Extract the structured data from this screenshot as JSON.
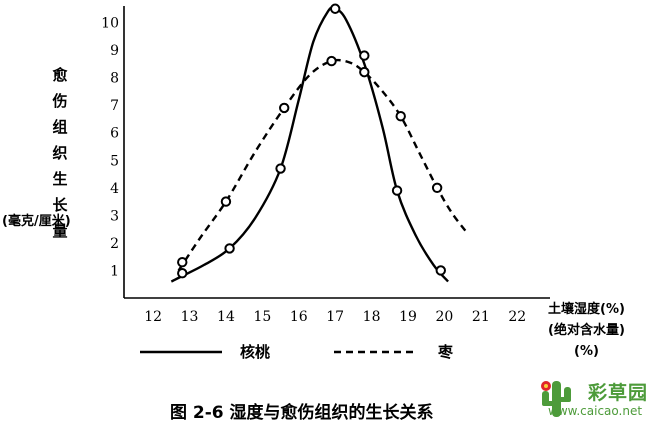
{
  "chart_data": {
    "type": "line",
    "caption": "图 2-6   湿度与愈伤组织的生长关系",
    "ylabel_chars": [
      "愈",
      "伤",
      "组",
      "织",
      "生",
      "长",
      "量"
    ],
    "ylabel_unit": "(毫克/厘米)",
    "xlabel_lines": [
      "土壤湿度(%)",
      "(绝对含水量)",
      "(%)"
    ],
    "x_ticks": [
      12,
      13,
      14,
      15,
      16,
      17,
      18,
      19,
      20,
      21,
      22
    ],
    "y_ticks": [
      1,
      2,
      3,
      4,
      5,
      6,
      7,
      8,
      9,
      10
    ],
    "xlim": [
      11.2,
      22.9
    ],
    "ylim": [
      0,
      10.6
    ],
    "series": [
      {
        "name": "核桃",
        "style": "solid",
        "points": [
          [
            12.8,
            0.9
          ],
          [
            14.1,
            1.8
          ],
          [
            15.5,
            4.7
          ],
          [
            17.0,
            10.5
          ],
          [
            17.8,
            8.8
          ],
          [
            18.7,
            3.9
          ],
          [
            19.9,
            1.0
          ]
        ],
        "curve": [
          [
            12.5,
            0.6
          ],
          [
            12.8,
            0.8
          ],
          [
            13.4,
            1.2
          ],
          [
            14.1,
            1.8
          ],
          [
            14.8,
            2.9
          ],
          [
            15.5,
            4.7
          ],
          [
            16.0,
            7.2
          ],
          [
            16.4,
            9.3
          ],
          [
            16.8,
            10.4
          ],
          [
            17.0,
            10.5
          ],
          [
            17.3,
            10.1
          ],
          [
            17.8,
            8.5
          ],
          [
            18.3,
            6.2
          ],
          [
            18.7,
            3.9
          ],
          [
            19.2,
            2.3
          ],
          [
            19.7,
            1.2
          ],
          [
            20.1,
            0.6
          ]
        ]
      },
      {
        "name": "枣",
        "style": "dashed",
        "points": [
          [
            12.8,
            1.3
          ],
          [
            14.0,
            3.5
          ],
          [
            15.6,
            6.9
          ],
          [
            16.9,
            8.6
          ],
          [
            17.8,
            8.2
          ],
          [
            18.8,
            6.6
          ],
          [
            19.8,
            4.0
          ]
        ],
        "curve": [
          [
            12.7,
            1.0
          ],
          [
            13.3,
            2.2
          ],
          [
            14.0,
            3.5
          ],
          [
            14.8,
            5.3
          ],
          [
            15.6,
            6.9
          ],
          [
            16.3,
            8.1
          ],
          [
            16.9,
            8.6
          ],
          [
            17.4,
            8.55
          ],
          [
            17.8,
            8.2
          ],
          [
            18.3,
            7.5
          ],
          [
            18.8,
            6.6
          ],
          [
            19.3,
            5.3
          ],
          [
            19.8,
            4.0
          ],
          [
            20.2,
            3.1
          ],
          [
            20.6,
            2.4
          ]
        ]
      }
    ]
  },
  "legend": {
    "solid_label": "核桃",
    "dashed_label": "枣"
  },
  "watermark": {
    "brand": "彩草园",
    "url": "www.caicao.net",
    "colors": {
      "green": "#4d9b3a",
      "red": "#e0262b"
    }
  }
}
